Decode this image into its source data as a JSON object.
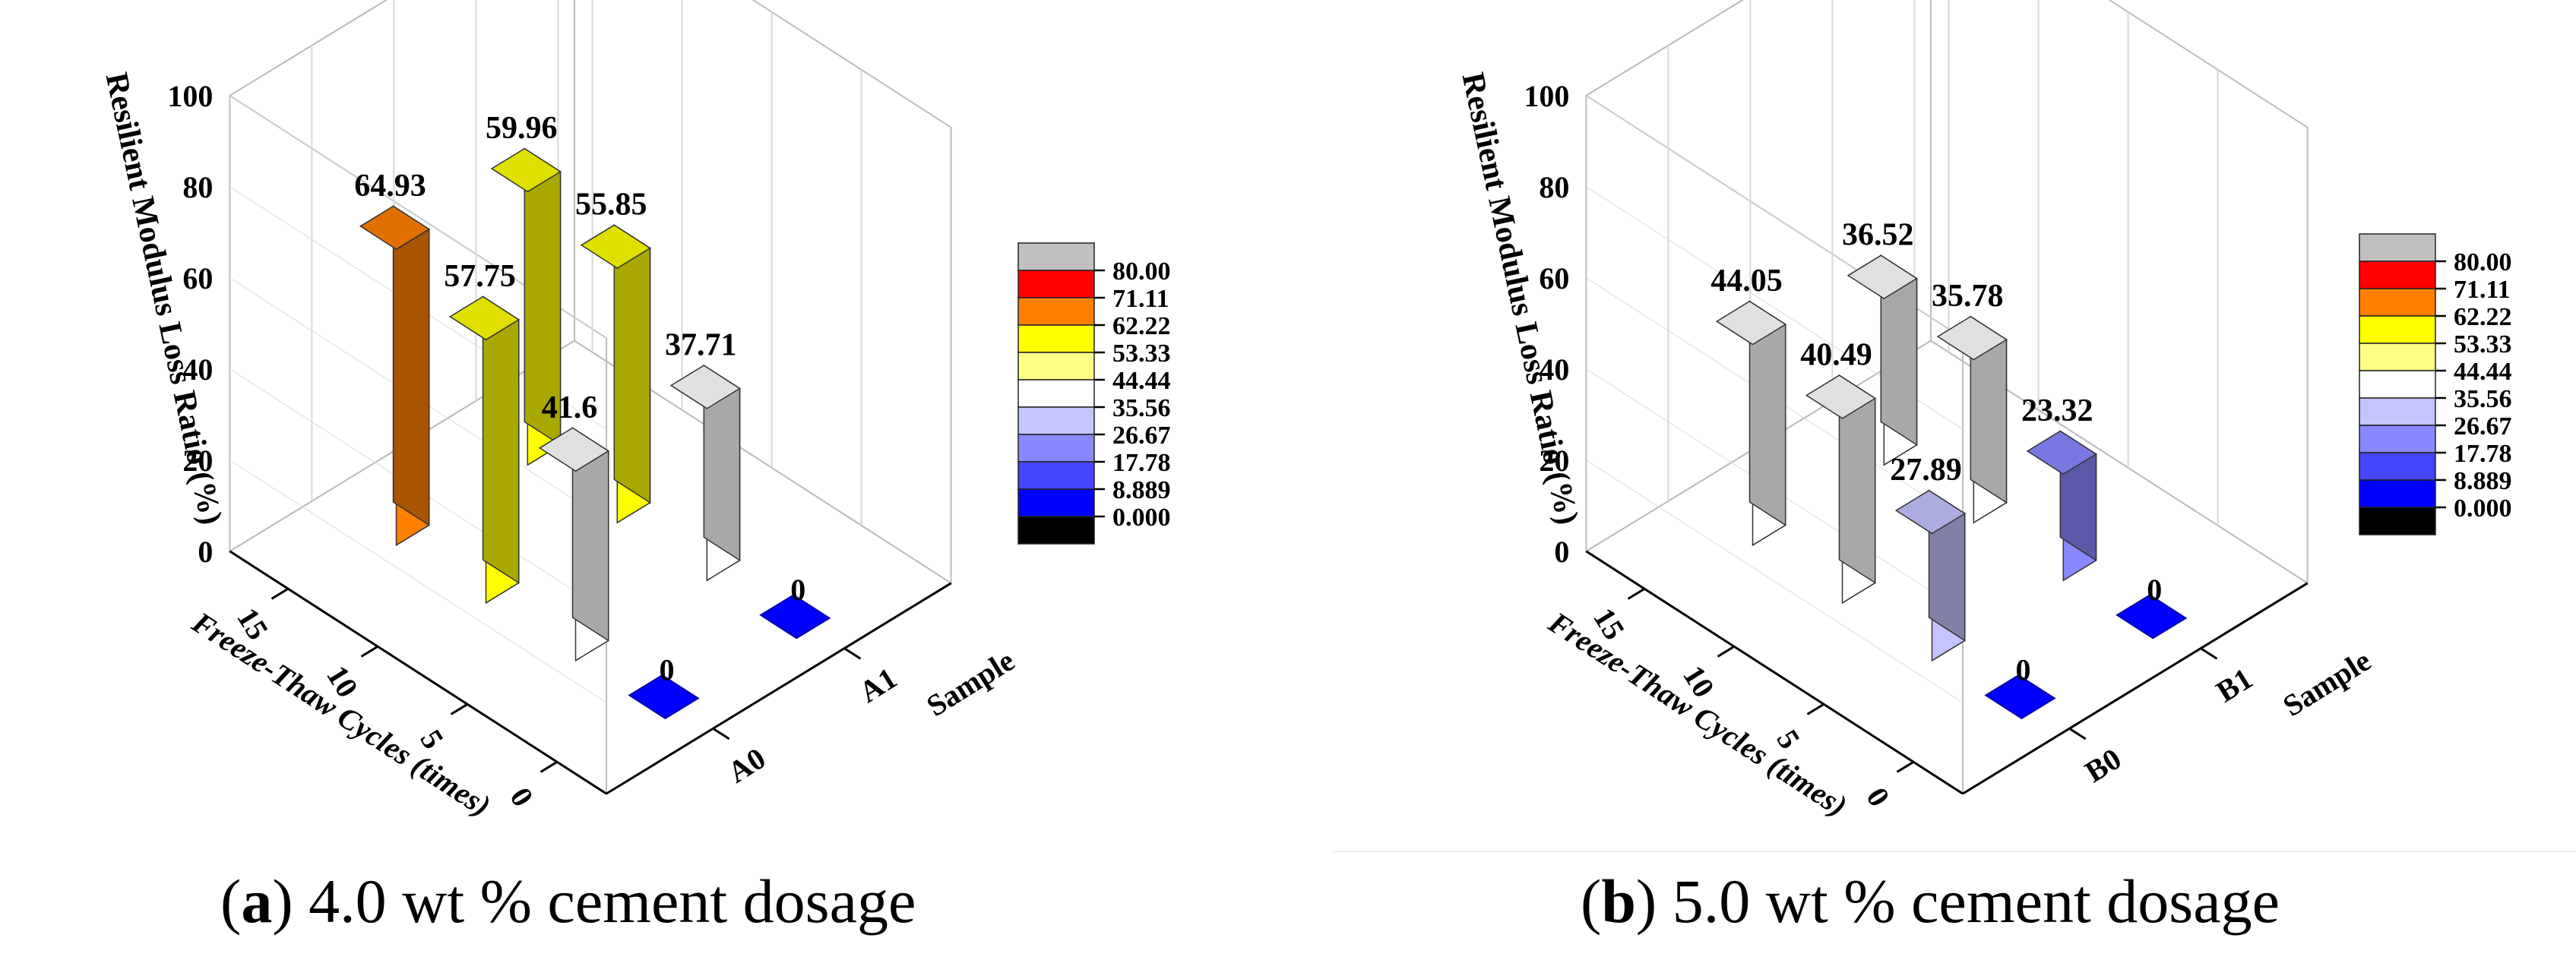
{
  "charts": [
    {
      "caption": {
        "letter": "a",
        "open": "(",
        "close": ")",
        "text": " 4.0 wt % cement dosage"
      },
      "ylabel": "Resilient Modulus Loss Ratio (%)",
      "xlabel": "Freeze-Thaw Cycles (times)",
      "samples_label": "Sample"
    },
    {
      "caption": {
        "letter": "b",
        "open": "(",
        "close": ")",
        "text": " 5.0 wt % cement dosage"
      },
      "ylabel": "Resilient Modulus Loss Ratio (%)",
      "xlabel": "Freeze-Thaw Cycles (times)",
      "samples_label": "Sample"
    }
  ],
  "chart_data": [
    {
      "type": "bar3d",
      "title": "(a) 4.0 wt % cement dosage",
      "ylabel": "Resilient Modulus Loss Ratio (%)",
      "xlabel": "Freeze-Thaw Cycles (times)",
      "zlabel": "Sample",
      "ylim": [
        0,
        100
      ],
      "yticks": [
        "0",
        "20",
        "40",
        "60",
        "80",
        "100"
      ],
      "xticks": [
        "0",
        "5",
        "10",
        "15"
      ],
      "samples": [
        "A0",
        "A1"
      ],
      "bars": [
        {
          "sample": "A0",
          "cycles": 0,
          "value": 0,
          "label": "0"
        },
        {
          "sample": "A0",
          "cycles": 5,
          "value": 41.6,
          "label": "41.6"
        },
        {
          "sample": "A0",
          "cycles": 10,
          "value": 57.75,
          "label": "57.75"
        },
        {
          "sample": "A0",
          "cycles": 15,
          "value": 64.93,
          "label": "64.93"
        },
        {
          "sample": "A1",
          "cycles": 0,
          "value": 0,
          "label": "0"
        },
        {
          "sample": "A1",
          "cycles": 5,
          "value": 37.71,
          "label": "37.71"
        },
        {
          "sample": "A1",
          "cycles": 10,
          "value": 55.85,
          "label": "55.85"
        },
        {
          "sample": "A1",
          "cycles": 15,
          "value": 59.96,
          "label": "59.96"
        }
      ],
      "legend": [
        "80.00",
        "71.11",
        "62.22",
        "53.33",
        "44.44",
        "35.56",
        "26.67",
        "17.78",
        "8.889",
        "0.000"
      ],
      "legend_colors": [
        "#c0c0c0",
        "#ff0000",
        "#ff8000",
        "#ffff00",
        "#ffff88",
        "#ffffff",
        "#c4c4ff",
        "#8888ff",
        "#4545ff",
        "#0000ff",
        "#000000"
      ]
    },
    {
      "type": "bar3d",
      "title": "(b) 5.0 wt % cement dosage",
      "ylabel": "Resilient Modulus Loss Ratio (%)",
      "xlabel": "Freeze-Thaw Cycles (times)",
      "zlabel": "Sample",
      "ylim": [
        0,
        100
      ],
      "yticks": [
        "0",
        "20",
        "40",
        "60",
        "80",
        "100"
      ],
      "xticks": [
        "0",
        "5",
        "10",
        "15"
      ],
      "samples": [
        "B0",
        "B1"
      ],
      "bars": [
        {
          "sample": "B0",
          "cycles": 0,
          "value": 0,
          "label": "0"
        },
        {
          "sample": "B0",
          "cycles": 5,
          "value": 27.89,
          "label": "27.89"
        },
        {
          "sample": "B0",
          "cycles": 10,
          "value": 40.49,
          "label": "40.49"
        },
        {
          "sample": "B0",
          "cycles": 15,
          "value": 44.05,
          "label": "44.05"
        },
        {
          "sample": "B1",
          "cycles": 0,
          "value": 0,
          "label": "0"
        },
        {
          "sample": "B1",
          "cycles": 5,
          "value": 23.32,
          "label": "23.32"
        },
        {
          "sample": "B1",
          "cycles": 10,
          "value": 35.78,
          "label": "35.78"
        },
        {
          "sample": "B1",
          "cycles": 15,
          "value": 36.52,
          "label": "36.52"
        }
      ],
      "legend": [
        "80.00",
        "71.11",
        "62.22",
        "53.33",
        "44.44",
        "35.56",
        "26.67",
        "17.78",
        "8.889",
        "0.000"
      ],
      "legend_colors": [
        "#c0c0c0",
        "#ff0000",
        "#ff8000",
        "#ffff00",
        "#ffff88",
        "#ffffff",
        "#c4c4ff",
        "#8888ff",
        "#4545ff",
        "#0000ff",
        "#000000"
      ]
    }
  ]
}
